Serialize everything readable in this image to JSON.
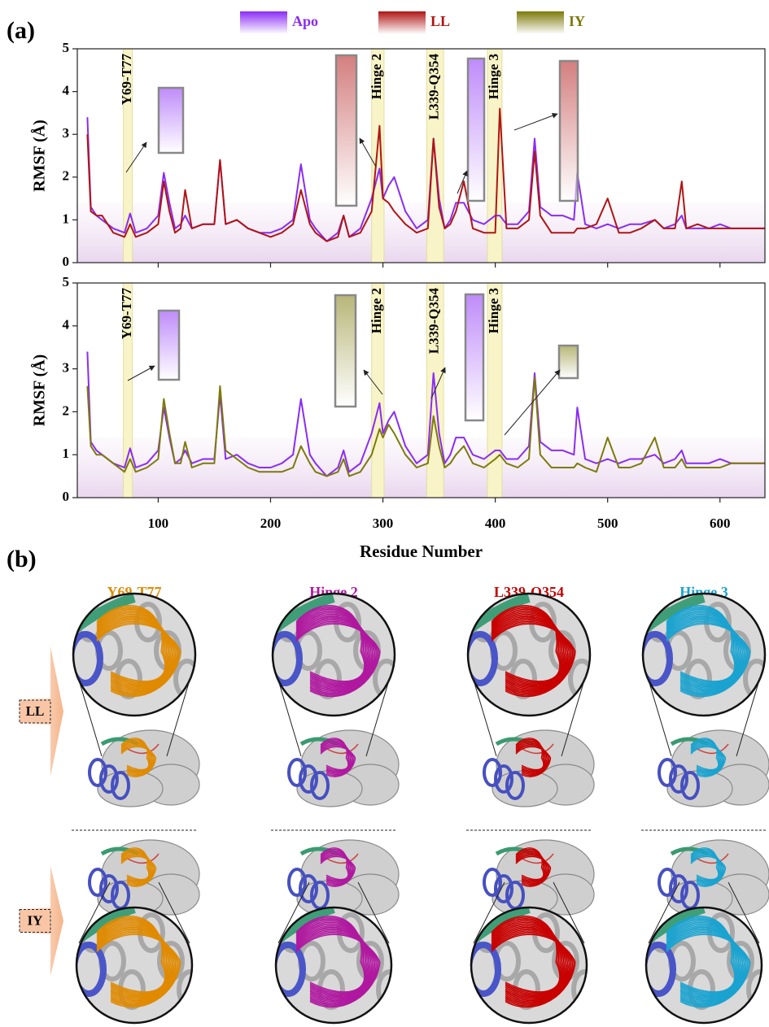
{
  "panel_labels": {
    "a": "(a)",
    "b": "(b)"
  },
  "chart_data": [
    {
      "type": "line",
      "ylabel": "RMSF (Å)",
      "x": [
        37,
        40,
        45,
        50,
        60,
        70,
        75,
        80,
        90,
        100,
        105,
        110,
        115,
        120,
        124,
        130,
        140,
        150,
        155,
        160,
        170,
        180,
        190,
        200,
        210,
        220,
        227,
        235,
        240,
        250,
        260,
        265,
        270,
        280,
        290,
        297,
        300,
        305,
        310,
        320,
        330,
        340,
        345,
        350,
        355,
        360,
        365,
        372,
        380,
        390,
        400,
        404,
        410,
        420,
        430,
        435,
        440,
        450,
        460,
        470,
        473,
        480,
        490,
        500,
        510,
        520,
        530,
        542,
        550,
        560,
        566,
        570,
        580,
        590,
        600,
        610,
        620,
        630,
        640
      ],
      "xlim": [
        28,
        640
      ],
      "ylim": [
        0,
        5
      ],
      "yticks": [
        0,
        1,
        2,
        3,
        4,
        5
      ],
      "xticks": [
        100,
        200,
        300,
        400,
        500,
        600
      ],
      "regions": [
        {
          "label": "Y69-T77",
          "range": [
            69,
            77
          ]
        },
        {
          "label": "Hinge 2",
          "range": [
            290,
            301
          ]
        },
        {
          "label": "L339-Q354",
          "range": [
            339,
            354
          ]
        },
        {
          "label": "Hinge 3",
          "range": [
            393,
            406
          ]
        }
      ],
      "series": [
        {
          "name": "Apo",
          "color": "#8a2cf5",
          "values": [
            3.4,
            1.3,
            1.1,
            1.0,
            0.8,
            0.7,
            1.15,
            0.7,
            0.8,
            1.1,
            2.1,
            1.4,
            0.8,
            0.9,
            1.1,
            0.8,
            0.9,
            0.9,
            2.4,
            0.9,
            1.0,
            0.8,
            0.7,
            0.7,
            0.8,
            1.0,
            2.3,
            1.0,
            0.8,
            0.5,
            0.7,
            1.1,
            0.6,
            0.8,
            1.5,
            2.2,
            1.5,
            1.8,
            2.0,
            1.2,
            0.8,
            1.0,
            2.9,
            1.5,
            0.8,
            1.0,
            1.4,
            1.4,
            1.0,
            0.9,
            1.1,
            1.1,
            0.9,
            0.9,
            1.2,
            2.9,
            1.3,
            1.1,
            1.1,
            1.0,
            2.1,
            0.9,
            0.8,
            0.9,
            0.8,
            0.9,
            0.9,
            1.0,
            0.8,
            0.9,
            1.1,
            0.8,
            0.8,
            0.8,
            0.9,
            0.8,
            0.8,
            0.8,
            0.8
          ]
        },
        {
          "name": "LL",
          "color": "#b01515",
          "values": [
            3.0,
            1.2,
            1.1,
            1.1,
            0.7,
            0.6,
            0.9,
            0.6,
            0.7,
            0.9,
            1.9,
            1.2,
            0.7,
            0.8,
            1.7,
            0.8,
            0.9,
            0.9,
            2.4,
            0.9,
            1.0,
            0.8,
            0.7,
            0.6,
            0.7,
            0.9,
            1.7,
            0.9,
            0.7,
            0.5,
            0.6,
            1.1,
            0.6,
            0.7,
            1.2,
            3.2,
            1.5,
            1.4,
            1.2,
            0.9,
            0.7,
            0.8,
            2.9,
            1.3,
            0.8,
            0.9,
            1.2,
            1.9,
            0.8,
            0.7,
            0.7,
            3.6,
            0.8,
            0.8,
            1.0,
            2.6,
            1.1,
            0.7,
            0.7,
            0.7,
            0.8,
            0.8,
            0.9,
            1.5,
            0.7,
            0.7,
            0.8,
            1.0,
            0.8,
            0.8,
            1.9,
            0.8,
            0.9,
            0.8,
            0.8,
            0.8,
            0.8,
            0.8,
            0.8
          ]
        }
      ]
    },
    {
      "type": "line",
      "ylabel": "RMSF (Å)",
      "xlabel": "Residue Number",
      "x": [
        37,
        40,
        45,
        50,
        60,
        70,
        75,
        80,
        90,
        100,
        105,
        110,
        115,
        120,
        124,
        130,
        140,
        150,
        155,
        160,
        170,
        180,
        190,
        200,
        210,
        220,
        227,
        235,
        240,
        250,
        260,
        265,
        270,
        280,
        290,
        297,
        300,
        305,
        310,
        320,
        330,
        340,
        345,
        350,
        355,
        360,
        365,
        372,
        380,
        390,
        400,
        404,
        410,
        420,
        430,
        435,
        440,
        450,
        460,
        470,
        473,
        480,
        490,
        500,
        510,
        520,
        530,
        542,
        550,
        560,
        566,
        570,
        580,
        590,
        600,
        610,
        620,
        630,
        640
      ],
      "xlim": [
        28,
        640
      ],
      "ylim": [
        0,
        5
      ],
      "yticks": [
        0,
        1,
        2,
        3,
        4,
        5
      ],
      "xticks": [
        100,
        200,
        300,
        400,
        500,
        600
      ],
      "regions": [
        {
          "label": "Y69-T77",
          "range": [
            69,
            77
          ]
        },
        {
          "label": "Hinge 2",
          "range": [
            290,
            301
          ]
        },
        {
          "label": "L339-Q354",
          "range": [
            339,
            354
          ]
        },
        {
          "label": "Hinge 3",
          "range": [
            393,
            406
          ]
        }
      ],
      "series": [
        {
          "name": "Apo",
          "color": "#8a2cf5",
          "values": [
            3.4,
            1.3,
            1.1,
            1.0,
            0.8,
            0.7,
            1.15,
            0.7,
            0.8,
            1.1,
            2.1,
            1.4,
            0.8,
            0.9,
            1.1,
            0.8,
            0.9,
            0.9,
            2.4,
            0.9,
            1.0,
            0.8,
            0.7,
            0.7,
            0.8,
            1.0,
            2.3,
            1.0,
            0.8,
            0.5,
            0.7,
            1.1,
            0.6,
            0.8,
            1.5,
            2.2,
            1.5,
            1.8,
            2.0,
            1.2,
            0.8,
            1.0,
            2.9,
            1.5,
            0.8,
            1.0,
            1.4,
            1.4,
            1.0,
            0.9,
            1.1,
            1.1,
            0.9,
            0.9,
            1.2,
            2.9,
            1.3,
            1.1,
            1.1,
            1.0,
            2.1,
            0.9,
            0.8,
            0.9,
            0.8,
            0.9,
            0.9,
            1.0,
            0.8,
            0.9,
            1.1,
            0.8,
            0.8,
            0.8,
            0.9,
            0.8,
            0.8,
            0.8,
            0.8
          ]
        },
        {
          "name": "IY",
          "color": "#7d7a0a",
          "values": [
            2.6,
            1.2,
            1.0,
            1.0,
            0.8,
            0.6,
            0.9,
            0.6,
            0.7,
            0.9,
            2.3,
            1.5,
            0.8,
            0.8,
            1.3,
            0.7,
            0.8,
            0.8,
            2.6,
            1.1,
            0.9,
            0.7,
            0.6,
            0.6,
            0.6,
            0.7,
            1.2,
            0.8,
            0.6,
            0.5,
            0.6,
            0.9,
            0.5,
            0.6,
            1.0,
            1.6,
            1.4,
            1.7,
            1.5,
            1.0,
            0.7,
            0.8,
            1.9,
            1.2,
            0.7,
            0.8,
            1.0,
            1.2,
            0.8,
            0.7,
            0.9,
            1.0,
            0.8,
            0.7,
            0.9,
            2.8,
            1.0,
            0.7,
            0.7,
            0.7,
            0.8,
            0.7,
            0.6,
            1.4,
            0.7,
            0.7,
            0.8,
            1.4,
            0.7,
            0.7,
            0.9,
            0.7,
            0.7,
            0.7,
            0.7,
            0.8,
            0.8,
            0.8,
            0.8
          ]
        }
      ]
    }
  ],
  "structures": {
    "columns": [
      {
        "title": "Y69-T77",
        "color": "#e08a00"
      },
      {
        "title": "Hinge 2",
        "color": "#b0189f"
      },
      {
        "title": "L339-Q354",
        "color": "#c80000"
      },
      {
        "title": "Hinge 3",
        "color": "#1aa3d0"
      }
    ],
    "rows": [
      "LL",
      "IY"
    ]
  }
}
